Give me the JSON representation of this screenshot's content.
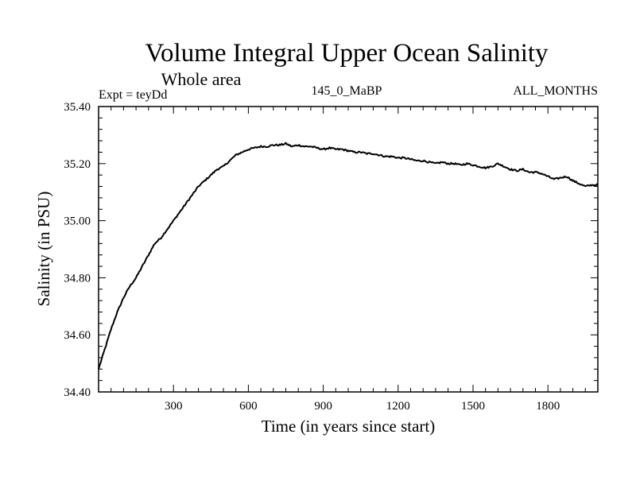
{
  "chart_data": {
    "type": "line",
    "title": "Volume Integral Upper Ocean Salinity",
    "subtitle": "Whole area",
    "left_label": "Expt = teyDd",
    "center_label": "145_0_MaBP",
    "right_label": "ALL_MONTHS",
    "xlabel": "Time (in years since start)",
    "ylabel": "Salinity (in PSU)",
    "xlim": [
      0,
      2000
    ],
    "ylim": [
      34.4,
      35.4
    ],
    "x_major_ticks": [
      300,
      600,
      900,
      1200,
      1500,
      1800
    ],
    "x_tick_labels": [
      "300",
      "600",
      "900",
      "1200",
      "1500",
      "1800"
    ],
    "y_major_ticks": [
      34.4,
      34.6,
      34.8,
      35.0,
      35.2,
      35.4
    ],
    "y_tick_labels": [
      "34.40",
      "34.60",
      "34.80",
      "35.00",
      "35.20",
      "35.40"
    ],
    "series": [
      {
        "name": "salinity",
        "x": [
          0,
          25,
          50,
          75,
          100,
          125,
          150,
          175,
          200,
          225,
          250,
          275,
          300,
          325,
          350,
          375,
          400,
          425,
          450,
          475,
          500,
          525,
          550,
          575,
          600,
          625,
          650,
          675,
          700,
          725,
          750,
          775,
          800,
          825,
          850,
          875,
          900,
          925,
          950,
          975,
          1000,
          1025,
          1050,
          1075,
          1100,
          1125,
          1150,
          1175,
          1200,
          1225,
          1250,
          1275,
          1300,
          1325,
          1350,
          1375,
          1400,
          1425,
          1450,
          1475,
          1500,
          1525,
          1550,
          1575,
          1600,
          1625,
          1650,
          1675,
          1700,
          1725,
          1750,
          1775,
          1800,
          1825,
          1850,
          1875,
          1900,
          1925,
          1950,
          1975,
          2000
        ],
        "values": [
          34.48,
          34.55,
          34.62,
          34.68,
          34.73,
          34.77,
          34.8,
          34.84,
          34.88,
          34.92,
          34.94,
          34.97,
          35.0,
          35.03,
          35.06,
          35.09,
          35.12,
          35.14,
          35.16,
          35.18,
          35.19,
          35.21,
          35.23,
          35.24,
          35.25,
          35.255,
          35.26,
          35.26,
          35.265,
          35.265,
          35.27,
          35.26,
          35.265,
          35.26,
          35.26,
          35.255,
          35.25,
          35.255,
          35.25,
          35.25,
          35.245,
          35.24,
          35.24,
          35.235,
          35.235,
          35.23,
          35.225,
          35.225,
          35.22,
          35.22,
          35.215,
          35.21,
          35.21,
          35.205,
          35.2,
          35.205,
          35.2,
          35.2,
          35.195,
          35.2,
          35.195,
          35.19,
          35.185,
          35.19,
          35.2,
          35.19,
          35.18,
          35.175,
          35.18,
          35.17,
          35.17,
          35.165,
          35.155,
          35.145,
          35.15,
          35.155,
          35.14,
          35.13,
          35.12,
          35.125,
          35.125
        ]
      }
    ]
  }
}
